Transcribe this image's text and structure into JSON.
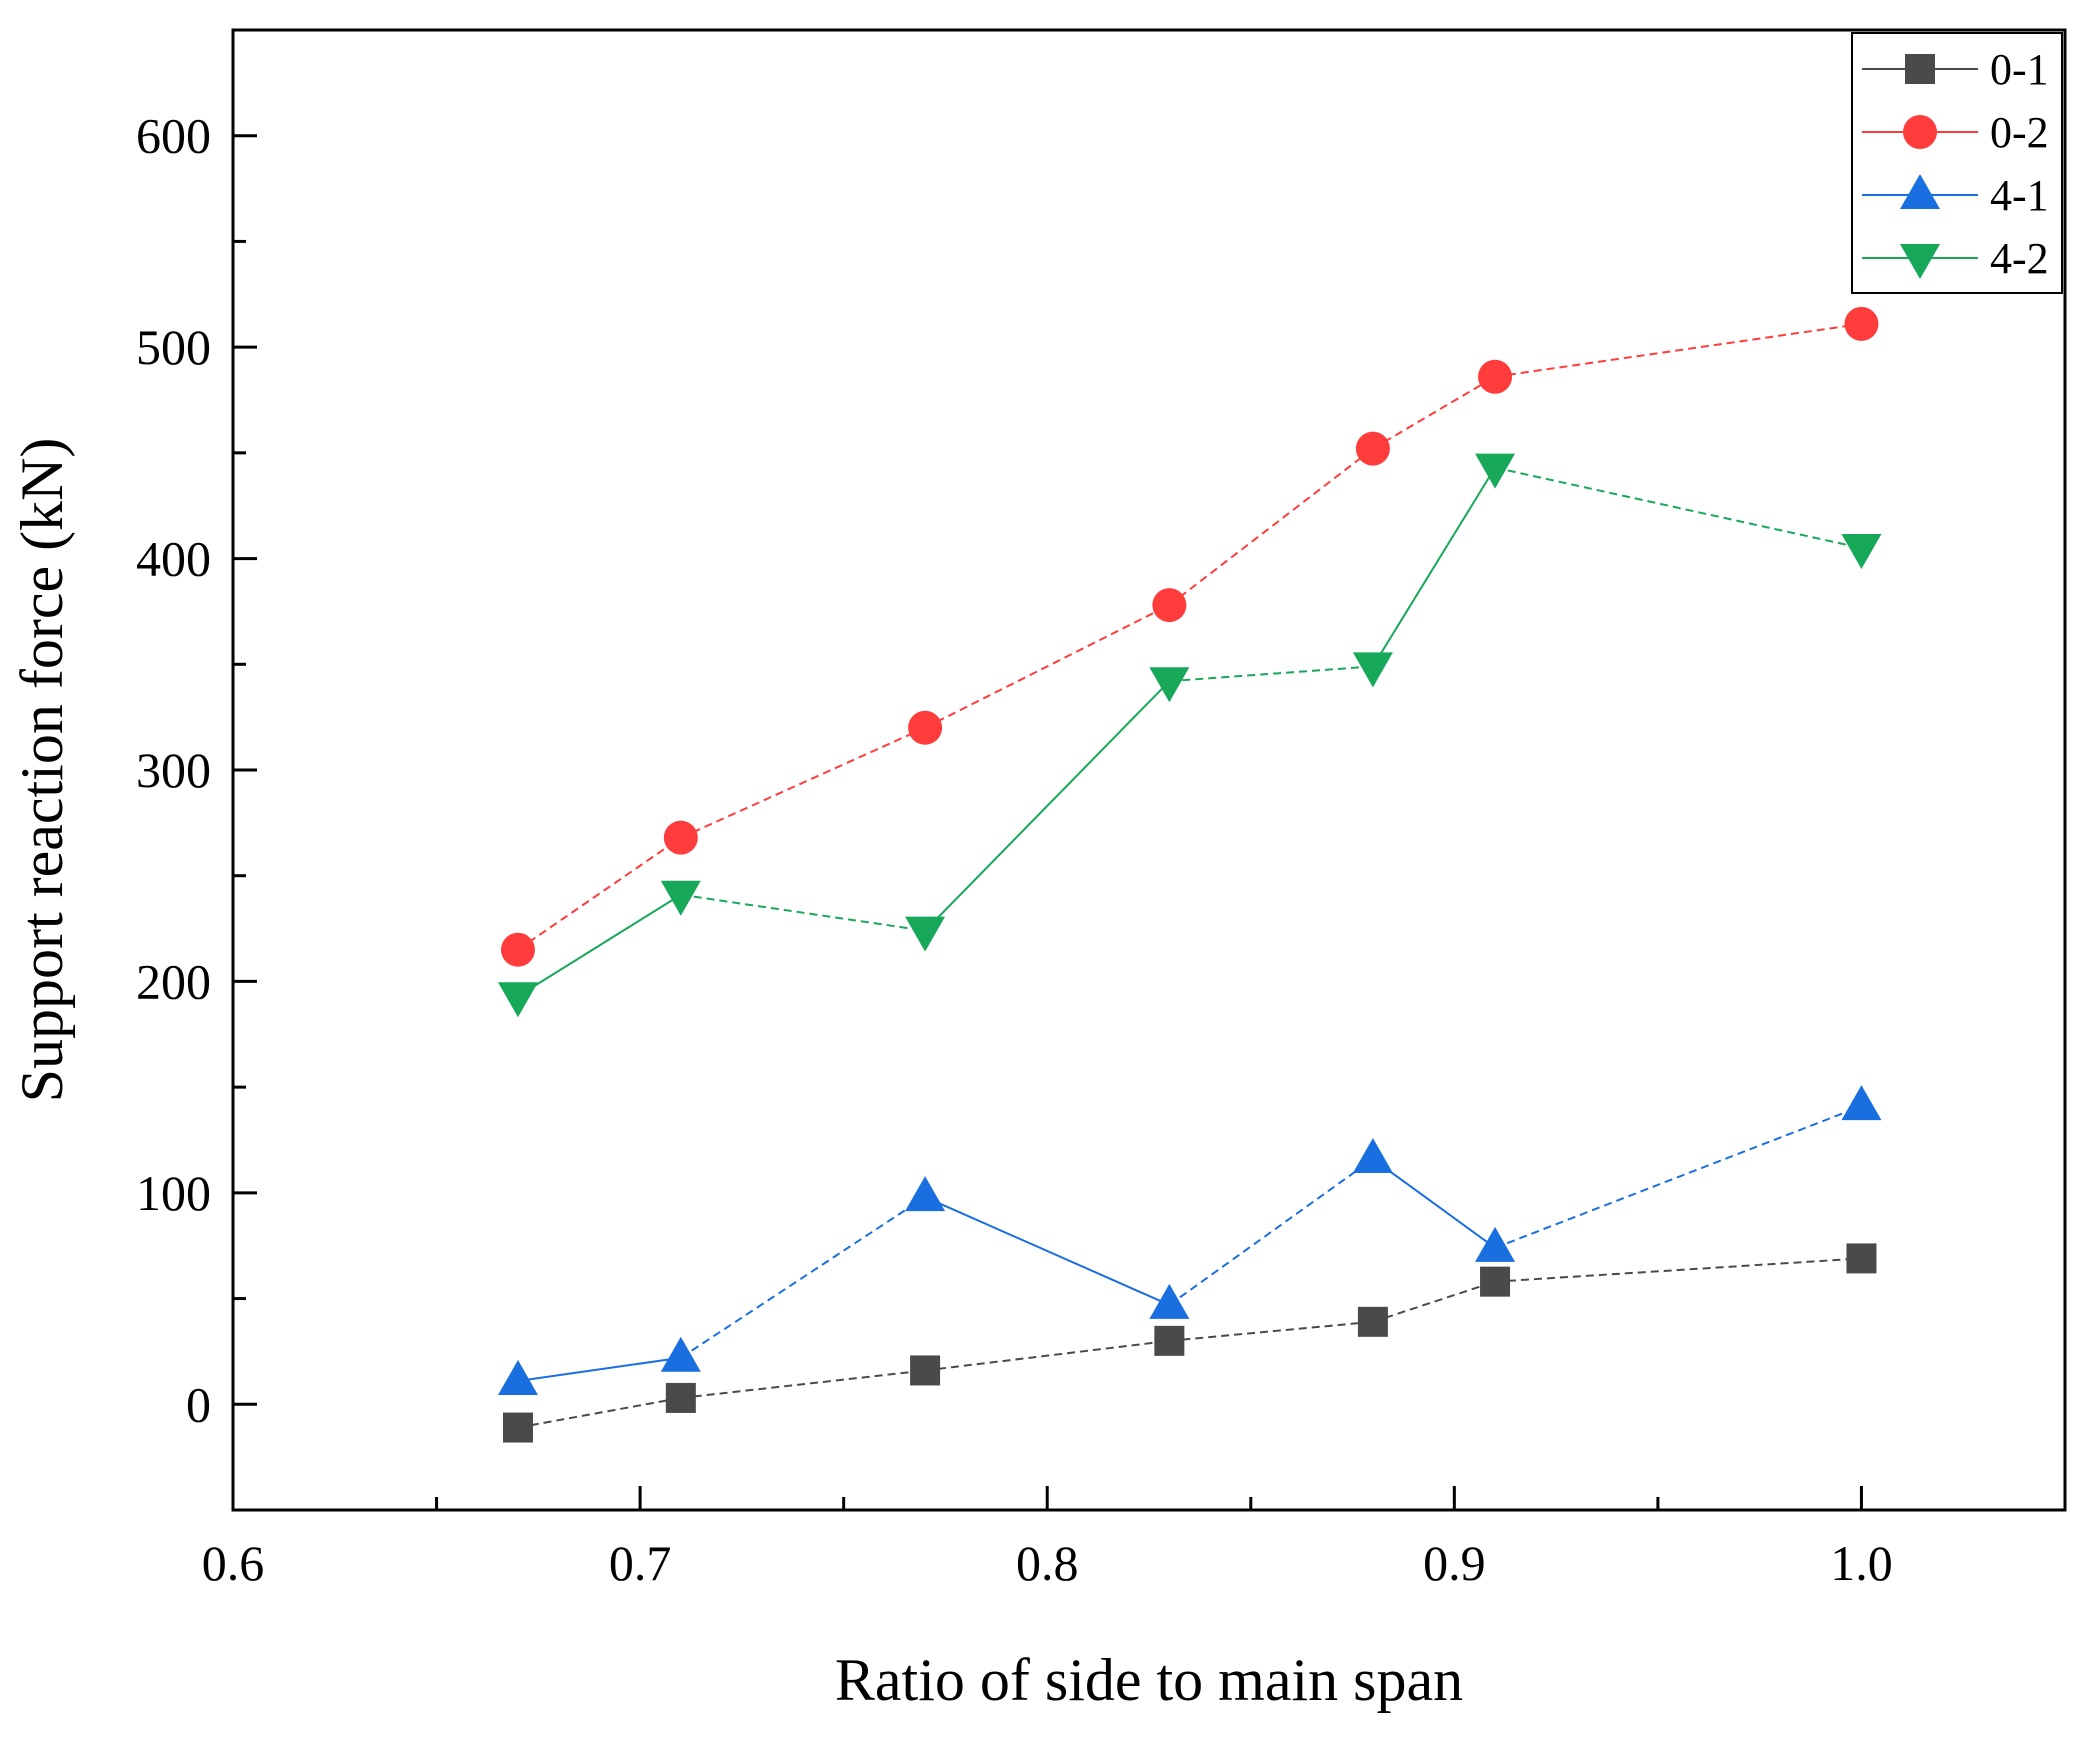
{
  "chart_data": {
    "type": "line",
    "title": "",
    "xlabel": "Ratio of side to main span",
    "ylabel": "Support reaction force (kN)",
    "xlim": [
      0.6,
      1.05
    ],
    "ylim": [
      -50,
      650
    ],
    "x_ticks": [
      0.6,
      0.7,
      0.8,
      0.9,
      1.0
    ],
    "x_tick_labels": [
      "0.6",
      "0.7",
      "0.8",
      "0.9",
      "1.0"
    ],
    "y_ticks": [
      0,
      100,
      200,
      300,
      400,
      500,
      600
    ],
    "y_tick_labels": [
      "0",
      "100",
      "200",
      "300",
      "400",
      "500",
      "600"
    ],
    "grid": false,
    "legend_position": "top-right",
    "x": [
      0.67,
      0.71,
      0.77,
      0.83,
      0.88,
      0.91,
      1.0
    ],
    "series": [
      {
        "name": "0-1",
        "values": [
          -11,
          3,
          16,
          30,
          39,
          58,
          69
        ],
        "color": "#4a4a4a",
        "marker": "square",
        "line_style": "dashed"
      },
      {
        "name": "0-2",
        "values": [
          215,
          268,
          320,
          378,
          452,
          486,
          511
        ],
        "color": "#ff3c3c",
        "marker": "circle",
        "line_style": "dashed"
      },
      {
        "name": "4-1",
        "values": [
          11,
          22,
          98,
          47,
          116,
          74,
          141
        ],
        "color": "#1a6fe0",
        "marker": "triangle-up",
        "line_style": "mixed"
      },
      {
        "name": "4-2",
        "values": [
          193,
          241,
          224,
          342,
          349,
          443,
          405
        ],
        "color": "#17a85a",
        "marker": "triangle-down",
        "line_style": "mixed"
      }
    ]
  }
}
